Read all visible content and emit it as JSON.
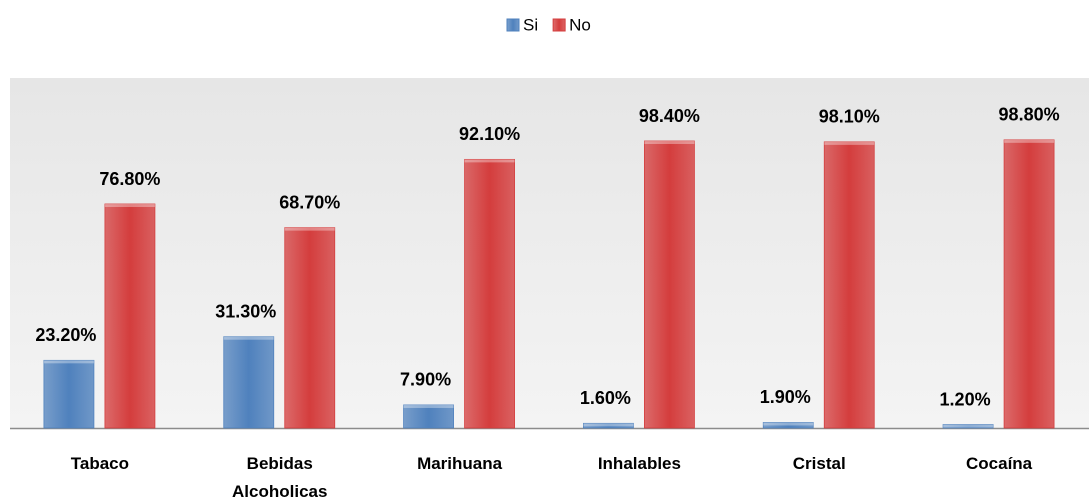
{
  "chart_data": {
    "type": "bar",
    "categories": [
      "Tabaco",
      "Bebidas Alcoholicas",
      "Marihuana",
      "Inhalables",
      "Cristal",
      "Cocaína"
    ],
    "series": [
      {
        "name": "Si",
        "color": "#4f81bd",
        "values": [
          23.2,
          31.3,
          7.9,
          1.6,
          1.9,
          1.2
        ],
        "value_labels": [
          "23.20%",
          "31.30%",
          "7.90%",
          "1.60%",
          "1.90%",
          "1.20%"
        ]
      },
      {
        "name": "No",
        "color": "#d43d3d",
        "values": [
          76.8,
          68.7,
          92.1,
          98.4,
          98.1,
          98.8
        ],
        "value_labels": [
          "76.80%",
          "68.70%",
          "92.10%",
          "98.40%",
          "98.10%",
          "98.80%"
        ]
      }
    ],
    "ylim": [
      0,
      120
    ],
    "legend": "top"
  }
}
